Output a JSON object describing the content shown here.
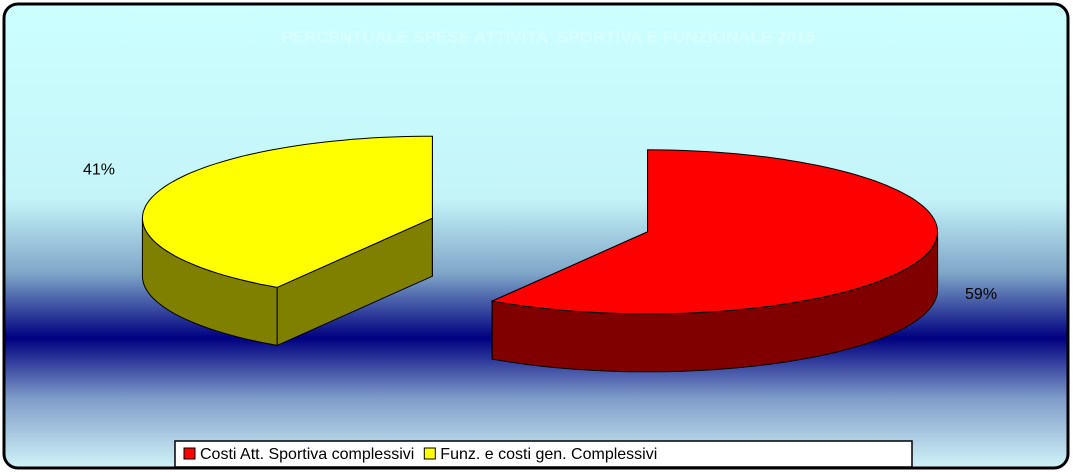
{
  "chart_data": {
    "type": "pie",
    "title": "PERCENTUALE SPESE ATTIVITA' SPORTIVA E FUNZIONALE 2015",
    "categories": [
      "Costi Att. Sportiva complessivi",
      "Funz. e costi gen. Complessivi"
    ],
    "values": [
      59,
      41
    ],
    "value_labels": [
      "59%",
      "41%"
    ],
    "colors": [
      "#ff0000",
      "#ffff00"
    ],
    "side_colors": [
      "#800000",
      "#808000"
    ],
    "legend": "bottom"
  }
}
